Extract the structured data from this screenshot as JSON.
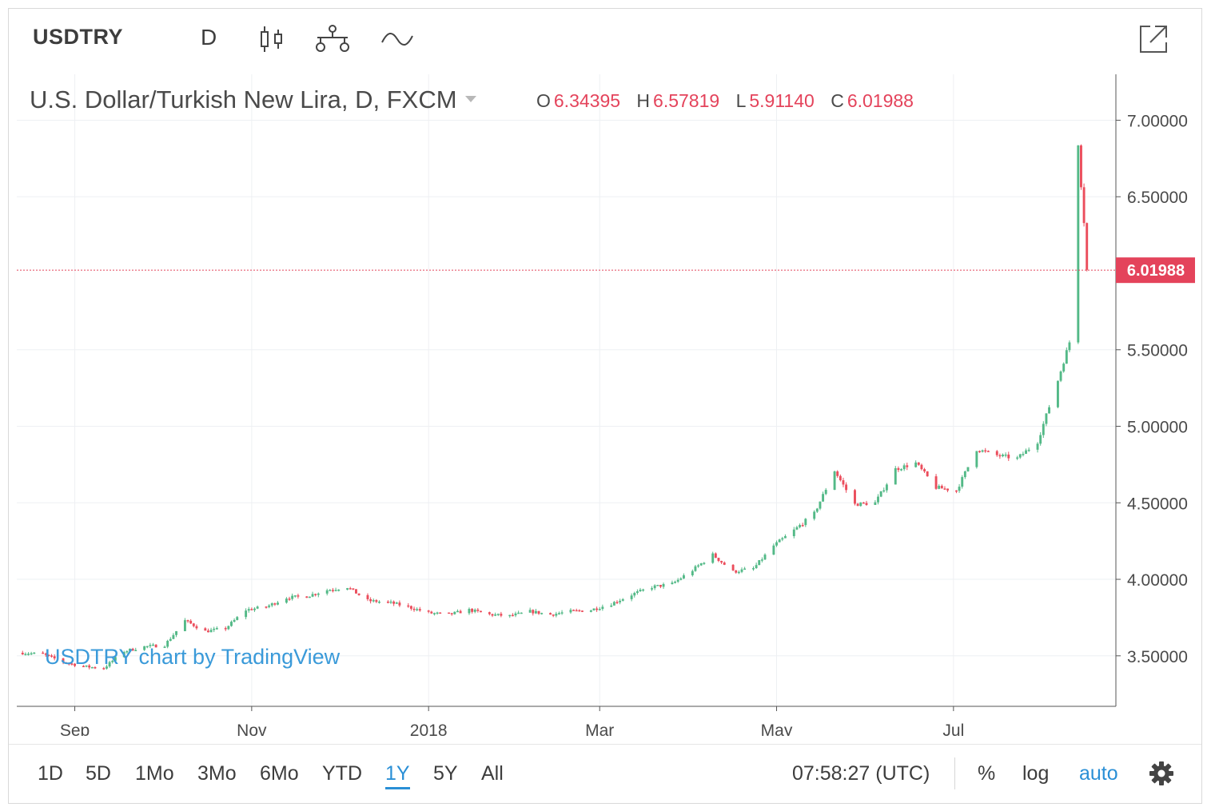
{
  "header": {
    "symbol": "USDTRY",
    "interval": "D",
    "icons": [
      "candlestick-icon",
      "compare-icon",
      "indicators-icon",
      "popout-icon"
    ]
  },
  "legend": {
    "title": "U.S. Dollar/Turkish New Lira, D, FXCM",
    "o_label": "O",
    "o_value": "6.34395",
    "h_label": "H",
    "h_value": "6.57819",
    "l_label": "L",
    "l_value": "5.91140",
    "c_label": "C",
    "c_value": "6.01988"
  },
  "watermark": "USDTRY chart by TradingView",
  "colors": {
    "up": "#53b987",
    "down": "#eb4d5c",
    "last_price": "#e4435b",
    "link": "#2a8fd6"
  },
  "bottom": {
    "ranges": [
      "1D",
      "5D",
      "1Mo",
      "3Mo",
      "6Mo",
      "YTD",
      "1Y",
      "5Y",
      "All"
    ],
    "active_range": "1Y",
    "clock": "07:58:27 (UTC)",
    "percent": "%",
    "log": "log",
    "auto": "auto"
  },
  "chart_data": {
    "type": "candlestick",
    "title": "U.S. Dollar/Turkish New Lira, D, FXCM",
    "y_ticks": [
      "7.00000",
      "6.50000",
      "5.50000",
      "5.00000",
      "4.50000",
      "4.00000",
      "3.50000"
    ],
    "ylim": [
      3.17,
      7.3
    ],
    "last_price": "6.01988",
    "x_ticks": [
      "Sep",
      "Nov",
      "2018",
      "Mar",
      "May",
      "Jul"
    ],
    "x_tick_dates": [
      "2017-09-01",
      "2017-11-01",
      "2018-01-01",
      "2018-03-01",
      "2018-05-01",
      "2018-07-01"
    ],
    "x_range": [
      "2017-08-12",
      "2018-08-26"
    ],
    "grid": true,
    "series_close": [
      {
        "d": "2017-08-14",
        "v": 3.52
      },
      {
        "d": "2017-08-21",
        "v": 3.51
      },
      {
        "d": "2017-08-28",
        "v": 3.46
      },
      {
        "d": "2017-09-04",
        "v": 3.43
      },
      {
        "d": "2017-09-11",
        "v": 3.42
      },
      {
        "d": "2017-09-18",
        "v": 3.53
      },
      {
        "d": "2017-09-25",
        "v": 3.56
      },
      {
        "d": "2017-10-02",
        "v": 3.57
      },
      {
        "d": "2017-10-09",
        "v": 3.73
      },
      {
        "d": "2017-10-16",
        "v": 3.66
      },
      {
        "d": "2017-10-23",
        "v": 3.68
      },
      {
        "d": "2017-10-30",
        "v": 3.8
      },
      {
        "d": "2017-11-06",
        "v": 3.82
      },
      {
        "d": "2017-11-13",
        "v": 3.88
      },
      {
        "d": "2017-11-20",
        "v": 3.89
      },
      {
        "d": "2017-11-27",
        "v": 3.93
      },
      {
        "d": "2017-12-04",
        "v": 3.95
      },
      {
        "d": "2017-12-11",
        "v": 3.86
      },
      {
        "d": "2017-12-18",
        "v": 3.85
      },
      {
        "d": "2017-12-25",
        "v": 3.82
      },
      {
        "d": "2018-01-01",
        "v": 3.78
      },
      {
        "d": "2018-01-08",
        "v": 3.77
      },
      {
        "d": "2018-01-15",
        "v": 3.8
      },
      {
        "d": "2018-01-22",
        "v": 3.77
      },
      {
        "d": "2018-01-29",
        "v": 3.76
      },
      {
        "d": "2018-02-05",
        "v": 3.79
      },
      {
        "d": "2018-02-12",
        "v": 3.77
      },
      {
        "d": "2018-02-19",
        "v": 3.79
      },
      {
        "d": "2018-02-26",
        "v": 3.8
      },
      {
        "d": "2018-03-05",
        "v": 3.84
      },
      {
        "d": "2018-03-12",
        "v": 3.9
      },
      {
        "d": "2018-03-19",
        "v": 3.95
      },
      {
        "d": "2018-03-26",
        "v": 3.97
      },
      {
        "d": "2018-04-02",
        "v": 4.06
      },
      {
        "d": "2018-04-09",
        "v": 4.16
      },
      {
        "d": "2018-04-16",
        "v": 4.05
      },
      {
        "d": "2018-04-23",
        "v": 4.07
      },
      {
        "d": "2018-04-30",
        "v": 4.22
      },
      {
        "d": "2018-05-07",
        "v": 4.32
      },
      {
        "d": "2018-05-14",
        "v": 4.43
      },
      {
        "d": "2018-05-21",
        "v": 4.71
      },
      {
        "d": "2018-05-28",
        "v": 4.49
      },
      {
        "d": "2018-06-04",
        "v": 4.5
      },
      {
        "d": "2018-06-11",
        "v": 4.72
      },
      {
        "d": "2018-06-18",
        "v": 4.76
      },
      {
        "d": "2018-06-25",
        "v": 4.6
      },
      {
        "d": "2018-07-02",
        "v": 4.58
      },
      {
        "d": "2018-07-09",
        "v": 4.85
      },
      {
        "d": "2018-07-16",
        "v": 4.81
      },
      {
        "d": "2018-07-23",
        "v": 4.79
      },
      {
        "d": "2018-07-30",
        "v": 4.9
      },
      {
        "d": "2018-08-06",
        "v": 5.3
      },
      {
        "d": "2018-08-10",
        "v": 5.55
      },
      {
        "d": "2018-08-13",
        "v": 6.85
      },
      {
        "d": "2018-08-14",
        "v": 6.58
      },
      {
        "d": "2018-08-15",
        "v": 6.34
      },
      {
        "d": "2018-08-16",
        "v": 6.02
      }
    ]
  }
}
